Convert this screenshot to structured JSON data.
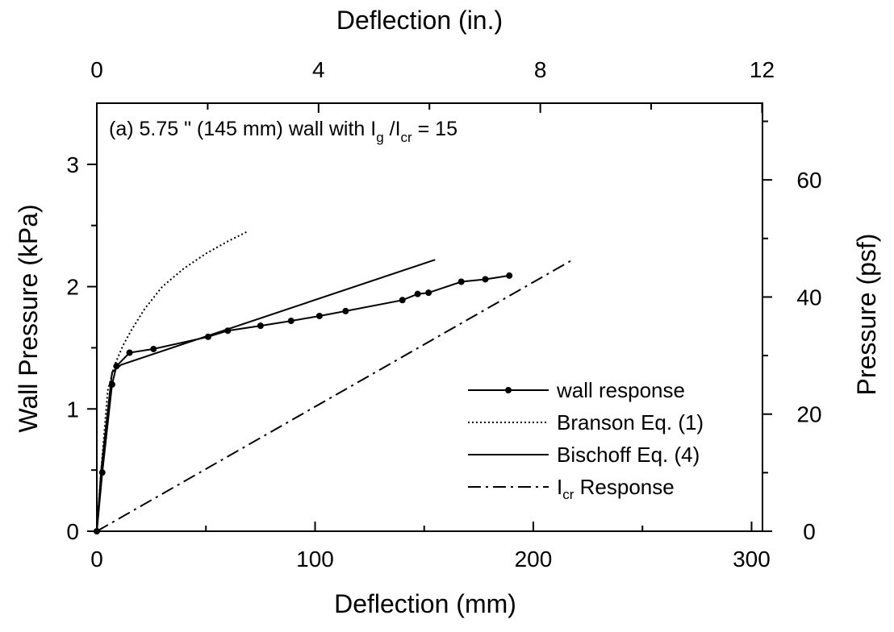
{
  "chart_data": {
    "type": "line",
    "annotation": {
      "prefix": "(a) 5.75 \" (145 mm) wall with I",
      "sub1": "g",
      "mid": " /I",
      "sub2": "cr",
      "suffix": " = 15"
    },
    "xlabel": "Deflection (mm)",
    "ylabel": "Wall Pressure (kPa)",
    "x2label": "Deflection (in.)",
    "y2label": "Pressure (psf)",
    "xlim": [
      0,
      305
    ],
    "ylim": [
      0,
      3.5
    ],
    "x2lim": [
      0,
      12.0079
    ],
    "y2lim": [
      0,
      73.1
    ],
    "x_ticks": [
      0,
      100,
      200,
      300
    ],
    "y_ticks": [
      0,
      1,
      2,
      3
    ],
    "x2_ticks": [
      0,
      4,
      8,
      12
    ],
    "x2_minor_ticks": [
      2,
      6,
      10
    ],
    "y2_ticks": [
      0,
      20,
      40,
      60
    ],
    "y2_minor_ticks": [
      10,
      30,
      50,
      70
    ],
    "x_minor_ticks": [
      50,
      150,
      250
    ],
    "y_minor_ticks": [
      0.5,
      1.5,
      2.5
    ],
    "legend_position": "bottom-right",
    "series": [
      {
        "name": "wall response",
        "style": "solid-marker",
        "x": [
          0,
          2.5,
          7,
          9,
          15,
          26,
          51,
          60,
          75,
          89,
          102,
          114,
          140,
          147,
          152,
          167,
          178,
          189
        ],
        "y": [
          0,
          0.48,
          1.2,
          1.35,
          1.46,
          1.49,
          1.59,
          1.64,
          1.68,
          1.72,
          1.76,
          1.8,
          1.89,
          1.94,
          1.95,
          2.04,
          2.06,
          2.09
        ]
      },
      {
        "name": "Branson Eq. (1)",
        "style": "dotted",
        "x": [
          0,
          2,
          5,
          8,
          12,
          16,
          22,
          30,
          40,
          50,
          60,
          69
        ],
        "y": [
          0,
          0.5,
          1.15,
          1.35,
          1.52,
          1.65,
          1.82,
          2.0,
          2.15,
          2.27,
          2.37,
          2.45
        ]
      },
      {
        "name": "Bischoff Eq. (4)",
        "style": "solid",
        "x": [
          0,
          2,
          7,
          11,
          155
        ],
        "y": [
          0,
          0.5,
          1.3,
          1.36,
          2.22
        ]
      },
      {
        "name": "I",
        "name_sub": "cr",
        "name_suffix": " Response",
        "style": "dashdot",
        "x": [
          0,
          218
        ],
        "y": [
          0,
          2.22
        ]
      }
    ]
  }
}
